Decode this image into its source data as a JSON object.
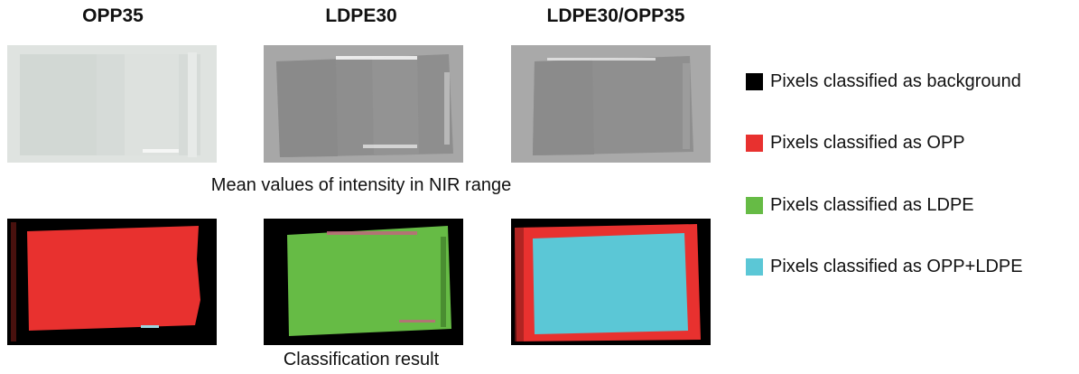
{
  "columns": [
    {
      "title": "OPP35"
    },
    {
      "title": "LDPE30"
    },
    {
      "title": "LDPE30/OPP35"
    }
  ],
  "captions": {
    "top_row": "Mean values of intensity in NIR range",
    "bottom_row": "Classification result"
  },
  "legend": [
    {
      "label": "Pixels classified as background",
      "color": "#000000"
    },
    {
      "label": "Pixels classified as OPP",
      "color": "#e8312f"
    },
    {
      "label": "Pixels classified as LDPE",
      "color": "#66bb45"
    },
    {
      "label": "Pixels classified as OPP+LDPE",
      "color": "#5bc7d6"
    }
  ]
}
